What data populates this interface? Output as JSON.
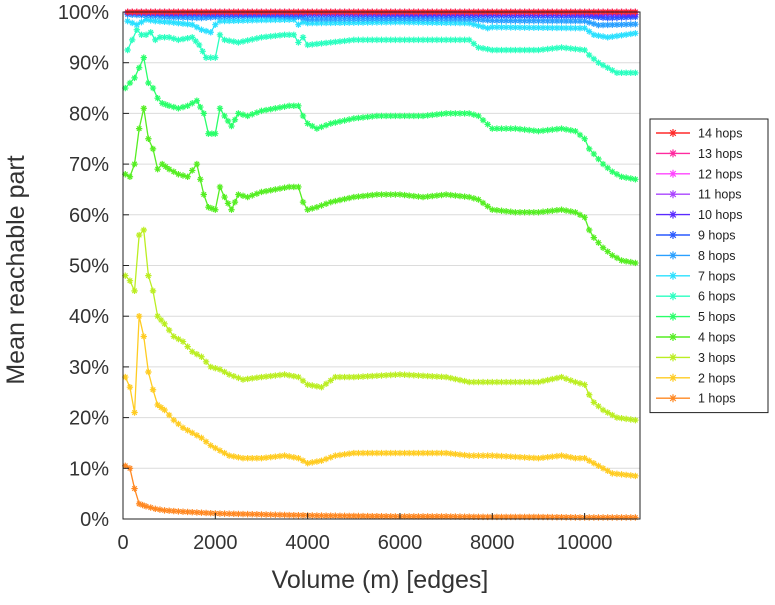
{
  "chart_data": {
    "type": "line",
    "title": "",
    "xlabel": "Volume (m) [edges]",
    "ylabel": "Mean reachable part",
    "xlim": [
      0,
      11200
    ],
    "ylim": [
      0,
      100
    ],
    "x_ticks": [
      0,
      2000,
      4000,
      6000,
      8000,
      10000
    ],
    "x_tick_labels": [
      "0",
      "2000",
      "4000",
      "6000",
      "8000",
      "10000"
    ],
    "y_ticks": [
      0,
      10,
      20,
      30,
      40,
      50,
      60,
      70,
      80,
      90,
      100
    ],
    "y_tick_labels": [
      "0%",
      "10%",
      "20%",
      "30%",
      "40%",
      "50%",
      "60%",
      "70%",
      "80%",
      "90%",
      "100%"
    ],
    "grid": "horizontal",
    "legend_position": "right",
    "series": [
      {
        "name": "14 hops",
        "color": "#ff2a2a",
        "x": [
          100,
          1000,
          2000,
          4000,
          6000,
          8000,
          10000,
          11100
        ],
        "values": [
          100,
          100,
          100,
          100,
          100,
          100,
          100,
          100
        ]
      },
      {
        "name": "13 hops",
        "color": "#ff2aa0",
        "x": [
          100,
          1000,
          2000,
          4000,
          6000,
          8000,
          10000,
          11100
        ],
        "values": [
          100,
          100,
          100,
          100,
          100,
          100,
          100,
          100
        ]
      },
      {
        "name": "12 hops",
        "color": "#ff44ff",
        "x": [
          100,
          1000,
          2000,
          4000,
          6000,
          8000,
          10000,
          11100
        ],
        "values": [
          100,
          100,
          100,
          100,
          100,
          100,
          100,
          100
        ]
      },
      {
        "name": "11 hops",
        "color": "#aa44ff",
        "x": [
          100,
          1000,
          2000,
          4000,
          6000,
          8000,
          10000,
          11100
        ],
        "values": [
          100,
          100,
          100,
          100,
          100,
          100,
          100,
          100
        ]
      },
      {
        "name": "10 hops",
        "color": "#5a2aff",
        "x": [
          100,
          1000,
          2000,
          4000,
          6000,
          8000,
          10000,
          11100
        ],
        "values": [
          99.9,
          99.8,
          99.8,
          99.8,
          99.7,
          99.7,
          99.6,
          99.5
        ]
      },
      {
        "name": "9 hops",
        "color": "#2a5aff",
        "x": [
          100,
          500,
          1000,
          2000,
          3000,
          4000,
          6000,
          8000,
          10000,
          10500,
          11100
        ],
        "values": [
          99.8,
          99.7,
          99.6,
          99.5,
          99.5,
          99.5,
          99.4,
          99.3,
          99.2,
          98.8,
          99.0
        ]
      },
      {
        "name": "8 hops",
        "color": "#2aa0ff",
        "x": [
          100,
          500,
          1000,
          1700,
          2000,
          3000,
          3800,
          4000,
          6000,
          7500,
          8000,
          10000,
          10300,
          11100
        ],
        "values": [
          99.5,
          99.3,
          99.0,
          98.8,
          99.0,
          99.3,
          99.0,
          98.6,
          98.7,
          98.6,
          98.3,
          98.2,
          97.4,
          97.6
        ]
      },
      {
        "name": "7 hops",
        "color": "#2ae0ff",
        "x": [
          100,
          300,
          500,
          700,
          1000,
          1500,
          1700,
          1900,
          2000,
          2100,
          3000,
          3700,
          3800,
          3900,
          4000,
          6000,
          7500,
          7900,
          8000,
          10000,
          10200,
          10500,
          11100
        ],
        "values": [
          98.2,
          97.5,
          98.5,
          98.2,
          98.0,
          97.5,
          96.5,
          96.0,
          97.5,
          98.2,
          98.4,
          98.5,
          97.5,
          98.0,
          97.8,
          98.0,
          97.8,
          96.8,
          97.0,
          96.8,
          95.5,
          95.0,
          95.8
        ]
      },
      {
        "name": "6 hops",
        "color": "#2affc0",
        "x": [
          100,
          200,
          300,
          400,
          500,
          600,
          700,
          800,
          1000,
          1200,
          1500,
          1650,
          1800,
          2000,
          2100,
          2200,
          2500,
          3000,
          3500,
          3700,
          3800,
          3900,
          4000,
          5000,
          6000,
          7000,
          7500,
          7700,
          8000,
          9000,
          9500,
          10000,
          10100,
          10300,
          10500,
          10700,
          11100
        ],
        "values": [
          92.5,
          94.5,
          96.5,
          95.5,
          95.5,
          96.0,
          94.5,
          95.0,
          95.0,
          94.5,
          95.0,
          93.5,
          91.0,
          91.0,
          95.5,
          94.5,
          94.0,
          95.0,
          95.5,
          95.5,
          94.0,
          95.0,
          93.5,
          94.5,
          94.5,
          94.5,
          94.5,
          93.0,
          92.5,
          92.5,
          93.0,
          92.5,
          91.5,
          90.0,
          89.0,
          88.0,
          88.0
        ]
      },
      {
        "name": "5 hops",
        "color": "#2aff6a",
        "x": [
          50,
          150,
          250,
          350,
          450,
          550,
          650,
          750,
          850,
          1000,
          1200,
          1400,
          1600,
          1750,
          1850,
          2000,
          2100,
          2200,
          2350,
          2500,
          2700,
          3000,
          3300,
          3600,
          3800,
          3900,
          4000,
          4200,
          4500,
          5000,
          5500,
          6000,
          6500,
          7000,
          7500,
          7700,
          8000,
          8500,
          9000,
          9500,
          9800,
          10000,
          10100,
          10200,
          10400,
          10600,
          10800,
          11100
        ],
        "values": [
          85.0,
          86.0,
          87.0,
          89.0,
          91.0,
          86.0,
          85.0,
          83.0,
          82.0,
          81.5,
          81.0,
          81.5,
          82.5,
          80.0,
          76.0,
          76.0,
          81.0,
          79.5,
          77.5,
          80.0,
          79.5,
          80.5,
          81.0,
          81.5,
          81.5,
          79.5,
          78.0,
          77.0,
          78.0,
          79.0,
          79.5,
          79.5,
          79.5,
          80.0,
          80.0,
          79.5,
          77.0,
          77.0,
          76.5,
          77.0,
          76.5,
          75.0,
          73.0,
          72.0,
          70.0,
          68.5,
          67.5,
          67.0
        ]
      },
      {
        "name": "4 hops",
        "color": "#55ee22",
        "x": [
          50,
          150,
          250,
          350,
          450,
          550,
          650,
          750,
          850,
          1000,
          1200,
          1400,
          1600,
          1750,
          1850,
          2000,
          2100,
          2200,
          2350,
          2500,
          2700,
          3000,
          3300,
          3600,
          3800,
          3900,
          4000,
          4200,
          4500,
          5000,
          5500,
          6000,
          6500,
          7000,
          7500,
          7700,
          8000,
          8500,
          9000,
          9500,
          9800,
          10000,
          10100,
          10200,
          10400,
          10600,
          10800,
          11100
        ],
        "values": [
          68.0,
          67.5,
          70.0,
          77.0,
          81.0,
          75.0,
          73.0,
          69.0,
          70.0,
          69.0,
          68.0,
          67.5,
          70.0,
          64.0,
          61.5,
          61.0,
          65.5,
          63.5,
          61.0,
          64.0,
          63.5,
          64.5,
          65.0,
          65.5,
          65.5,
          62.5,
          61.0,
          61.5,
          62.5,
          63.5,
          64.0,
          64.0,
          63.5,
          64.0,
          63.5,
          63.0,
          61.0,
          60.5,
          60.5,
          61.0,
          60.5,
          59.5,
          57.0,
          55.5,
          53.5,
          52.0,
          51.0,
          50.5
        ]
      },
      {
        "name": "3 hops",
        "color": "#bbee22",
        "x": [
          50,
          150,
          250,
          350,
          450,
          550,
          650,
          750,
          900,
          1100,
          1300,
          1500,
          1700,
          1900,
          2100,
          2300,
          2600,
          3000,
          3500,
          3800,
          4000,
          4300,
          4600,
          5000,
          6000,
          7000,
          7500,
          8000,
          9000,
          9500,
          9800,
          10000,
          10100,
          10200,
          10400,
          10700,
          11100
        ],
        "values": [
          48.0,
          47.0,
          45.0,
          56.0,
          57.0,
          48.0,
          45.0,
          40.0,
          38.5,
          36.0,
          35.0,
          33.0,
          32.0,
          30.0,
          29.5,
          28.5,
          27.5,
          28.0,
          28.5,
          28.0,
          26.5,
          26.0,
          28.0,
          28.0,
          28.5,
          28.0,
          27.0,
          27.0,
          27.0,
          28.0,
          27.0,
          26.5,
          24.5,
          23.0,
          21.5,
          20.0,
          19.5
        ]
      },
      {
        "name": "2 hops",
        "color": "#ffcc22",
        "x": [
          50,
          150,
          250,
          350,
          450,
          550,
          650,
          750,
          900,
          1100,
          1300,
          1500,
          1700,
          1900,
          2100,
          2300,
          2600,
          3000,
          3500,
          3800,
          4000,
          4300,
          4600,
          5000,
          6000,
          7000,
          7500,
          8000,
          9000,
          9500,
          9800,
          10000,
          10300,
          10600,
          11100
        ],
        "values": [
          28.0,
          26.0,
          21.0,
          40.0,
          36.0,
          29.0,
          25.5,
          22.5,
          21.5,
          19.5,
          18.0,
          17.0,
          16.0,
          14.5,
          13.5,
          12.5,
          12.0,
          12.0,
          12.5,
          12.0,
          11.0,
          11.5,
          12.5,
          13.0,
          13.0,
          13.0,
          12.5,
          12.5,
          12.0,
          12.5,
          12.0,
          12.0,
          10.5,
          9.0,
          8.5
        ]
      },
      {
        "name": "1 hops",
        "color": "#ff8822",
        "x": [
          50,
          150,
          250,
          350,
          500,
          700,
          900,
          1200,
          1600,
          2000,
          3000,
          4000,
          5000,
          6000,
          7000,
          8000,
          9000,
          10000,
          11100
        ],
        "values": [
          10.5,
          10.0,
          6.0,
          3.0,
          2.5,
          2.0,
          1.7,
          1.5,
          1.3,
          1.1,
          0.9,
          0.7,
          0.6,
          0.5,
          0.5,
          0.4,
          0.4,
          0.3,
          0.3
        ]
      }
    ]
  }
}
